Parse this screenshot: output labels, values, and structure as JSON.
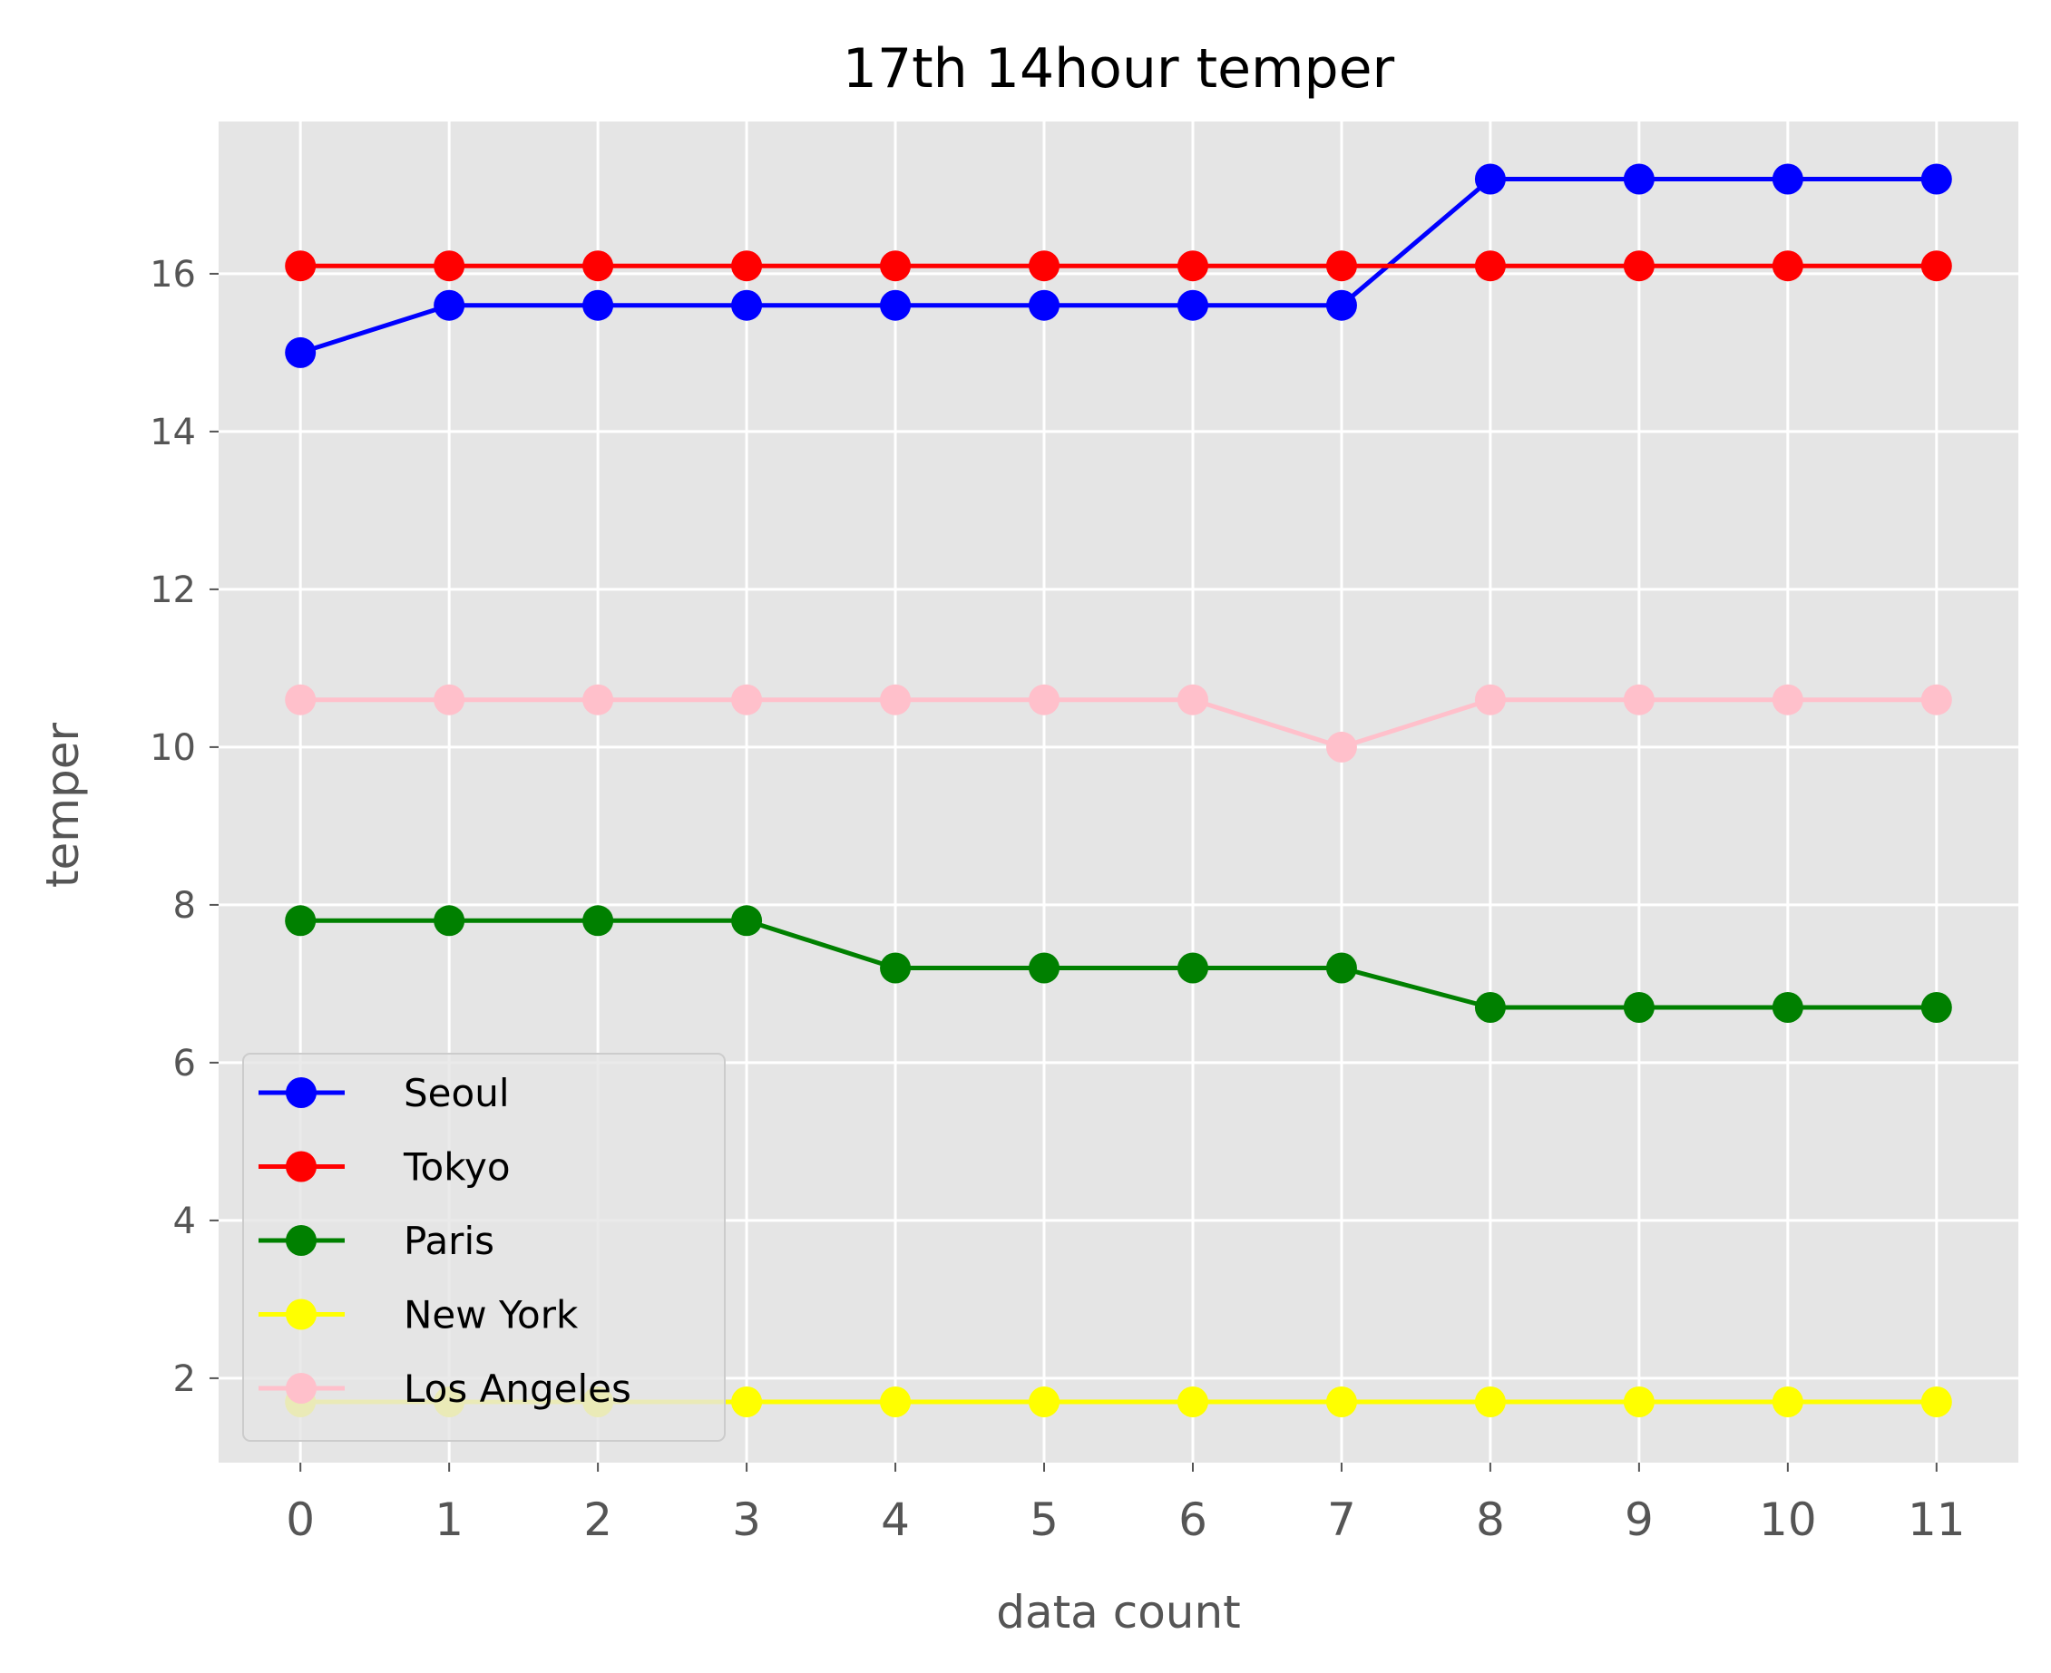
{
  "chart_data": {
    "type": "line",
    "title": "17th 14hour temper",
    "xlabel": "data count",
    "ylabel": "temper",
    "x": [
      0,
      1,
      2,
      3,
      4,
      5,
      6,
      7,
      8,
      9,
      10,
      11
    ],
    "xticks": [
      0,
      1,
      2,
      3,
      4,
      5,
      6,
      7,
      8,
      9,
      10,
      11
    ],
    "yticks": [
      2,
      4,
      6,
      8,
      10,
      12,
      14,
      16
    ],
    "xlim": [
      -0.55,
      11.55
    ],
    "ylim": [
      0.93,
      17.93
    ],
    "grid": true,
    "legend_position": "lower-left",
    "series": [
      {
        "name": "Seoul",
        "color": "#0000ff",
        "values": [
          15.0,
          15.6,
          15.6,
          15.6,
          15.6,
          15.6,
          15.6,
          15.6,
          17.2,
          17.2,
          17.2,
          17.2
        ]
      },
      {
        "name": "Tokyo",
        "color": "#ff0000",
        "values": [
          16.1,
          16.1,
          16.1,
          16.1,
          16.1,
          16.1,
          16.1,
          16.1,
          16.1,
          16.1,
          16.1,
          16.1
        ]
      },
      {
        "name": "Paris",
        "color": "#008000",
        "values": [
          7.8,
          7.8,
          7.8,
          7.8,
          7.2,
          7.2,
          7.2,
          7.2,
          6.7,
          6.7,
          6.7,
          6.7
        ]
      },
      {
        "name": "New York",
        "color": "#ffff00",
        "values": [
          1.7,
          1.7,
          1.7,
          1.7,
          1.7,
          1.7,
          1.7,
          1.7,
          1.7,
          1.7,
          1.7,
          1.7
        ]
      },
      {
        "name": "Los Angeles",
        "color": "#ffc0cb",
        "values": [
          10.6,
          10.6,
          10.6,
          10.6,
          10.6,
          10.6,
          10.6,
          10.0,
          10.6,
          10.6,
          10.6,
          10.6
        ]
      }
    ]
  }
}
